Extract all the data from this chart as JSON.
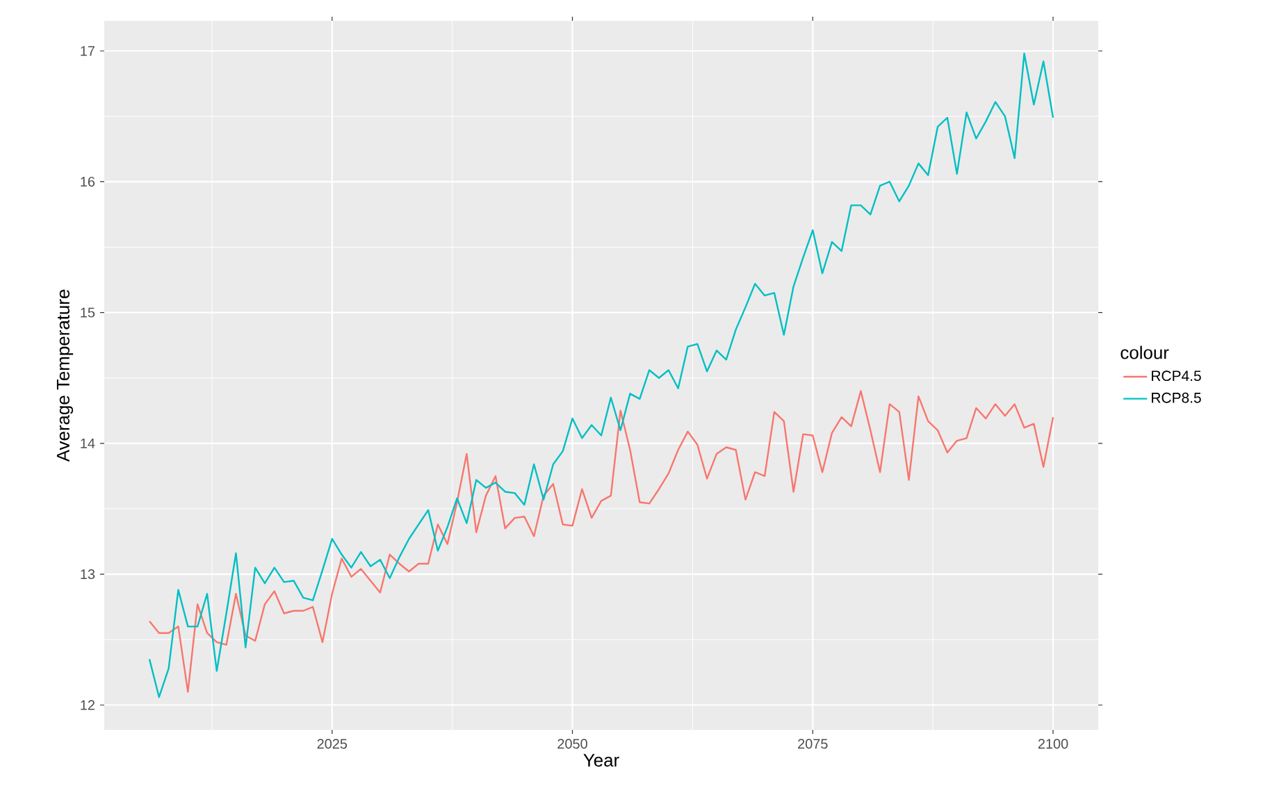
{
  "chart_data": {
    "type": "line",
    "xlabel": "Year",
    "ylabel": "Average Temperature",
    "legend_title": "colour",
    "legend": "right",
    "grid": true,
    "line_style": "solid",
    "xlim": [
      2001.3,
      2104.7
    ],
    "ylim": [
      11.81,
      17.23
    ],
    "xticks": [
      {
        "value": 2012.5,
        "label": null
      },
      2025,
      {
        "value": 2037.5,
        "label": null
      },
      2050,
      {
        "value": 2062.5,
        "label": null
      },
      2075,
      {
        "value": 2087.5,
        "label": null
      },
      2100
    ],
    "yticks": [
      12,
      {
        "value": 12.5,
        "label": null
      },
      13,
      {
        "value": 13.5,
        "label": null
      },
      14,
      {
        "value": 14.5,
        "label": null
      },
      15,
      {
        "value": 15.5,
        "label": null
      },
      16,
      {
        "value": 16.5,
        "label": null
      },
      17
    ],
    "x": [
      2006,
      2007,
      2008,
      2009,
      2010,
      2011,
      2012,
      2013,
      2014,
      2015,
      2016,
      2017,
      2018,
      2019,
      2020,
      2021,
      2022,
      2023,
      2024,
      2025,
      2026,
      2027,
      2028,
      2029,
      2030,
      2031,
      2032,
      2033,
      2034,
      2035,
      2036,
      2037,
      2038,
      2039,
      2040,
      2041,
      2042,
      2043,
      2044,
      2045,
      2046,
      2047,
      2048,
      2049,
      2050,
      2051,
      2052,
      2053,
      2054,
      2055,
      2056,
      2057,
      2058,
      2059,
      2060,
      2061,
      2062,
      2063,
      2064,
      2065,
      2066,
      2067,
      2068,
      2069,
      2070,
      2071,
      2072,
      2073,
      2074,
      2075,
      2076,
      2077,
      2078,
      2079,
      2080,
      2081,
      2082,
      2083,
      2084,
      2085,
      2086,
      2087,
      2088,
      2089,
      2090,
      2091,
      2092,
      2093,
      2094,
      2095,
      2096,
      2097,
      2098,
      2099,
      2100
    ],
    "series": [
      {
        "name": "RCP4.5",
        "color": "#f8766d",
        "values": [
          12.64,
          12.55,
          12.55,
          12.6,
          12.1,
          12.77,
          12.55,
          12.48,
          12.46,
          12.85,
          12.53,
          12.49,
          12.77,
          12.87,
          12.7,
          12.72,
          12.72,
          12.75,
          12.48,
          12.85,
          13.12,
          12.98,
          13.04,
          12.95,
          12.86,
          13.15,
          13.08,
          13.02,
          13.08,
          13.08,
          13.38,
          13.23,
          13.55,
          13.92,
          13.32,
          13.6,
          13.75,
          13.35,
          13.43,
          13.44,
          13.29,
          13.6,
          13.69,
          13.38,
          13.37,
          13.65,
          13.43,
          13.56,
          13.6,
          14.25,
          13.95,
          13.55,
          13.54,
          13.65,
          13.77,
          13.95,
          14.09,
          13.99,
          13.73,
          13.92,
          13.97,
          13.95,
          13.57,
          13.78,
          13.75,
          14.24,
          14.17,
          13.63,
          14.07,
          14.06,
          13.78,
          14.08,
          14.2,
          14.13,
          14.4,
          14.1,
          13.78,
          14.3,
          14.24,
          13.72,
          14.36,
          14.17,
          14.1,
          13.93,
          14.02,
          14.04,
          14.27,
          14.19,
          14.3,
          14.21,
          14.3,
          14.12,
          14.15,
          13.82,
          14.2
        ]
      },
      {
        "name": "RCP8.5",
        "color": "#00bfc4",
        "values": [
          12.35,
          12.06,
          12.28,
          12.88,
          12.6,
          12.6,
          12.85,
          12.26,
          12.7,
          13.16,
          12.44,
          13.05,
          12.93,
          13.05,
          12.94,
          12.95,
          12.82,
          12.8,
          13.03,
          13.27,
          13.15,
          13.05,
          13.17,
          13.06,
          13.11,
          12.97,
          13.13,
          13.27,
          13.38,
          13.49,
          13.18,
          13.36,
          13.58,
          13.39,
          13.72,
          13.66,
          13.7,
          13.63,
          13.62,
          13.53,
          13.84,
          13.57,
          13.84,
          13.94,
          14.19,
          14.04,
          14.14,
          14.06,
          14.35,
          14.1,
          14.38,
          14.34,
          14.56,
          14.5,
          14.56,
          14.42,
          14.74,
          14.76,
          14.55,
          14.71,
          14.64,
          14.87,
          15.04,
          15.22,
          15.13,
          15.15,
          14.83,
          15.2,
          15.42,
          15.63,
          15.3,
          15.54,
          15.47,
          15.82,
          15.82,
          15.75,
          15.97,
          16.0,
          15.85,
          15.97,
          16.14,
          16.05,
          16.42,
          16.49,
          16.06,
          16.53,
          16.33,
          16.46,
          16.61,
          16.5,
          16.18,
          16.98,
          16.59,
          16.92,
          16.49
        ]
      }
    ]
  }
}
